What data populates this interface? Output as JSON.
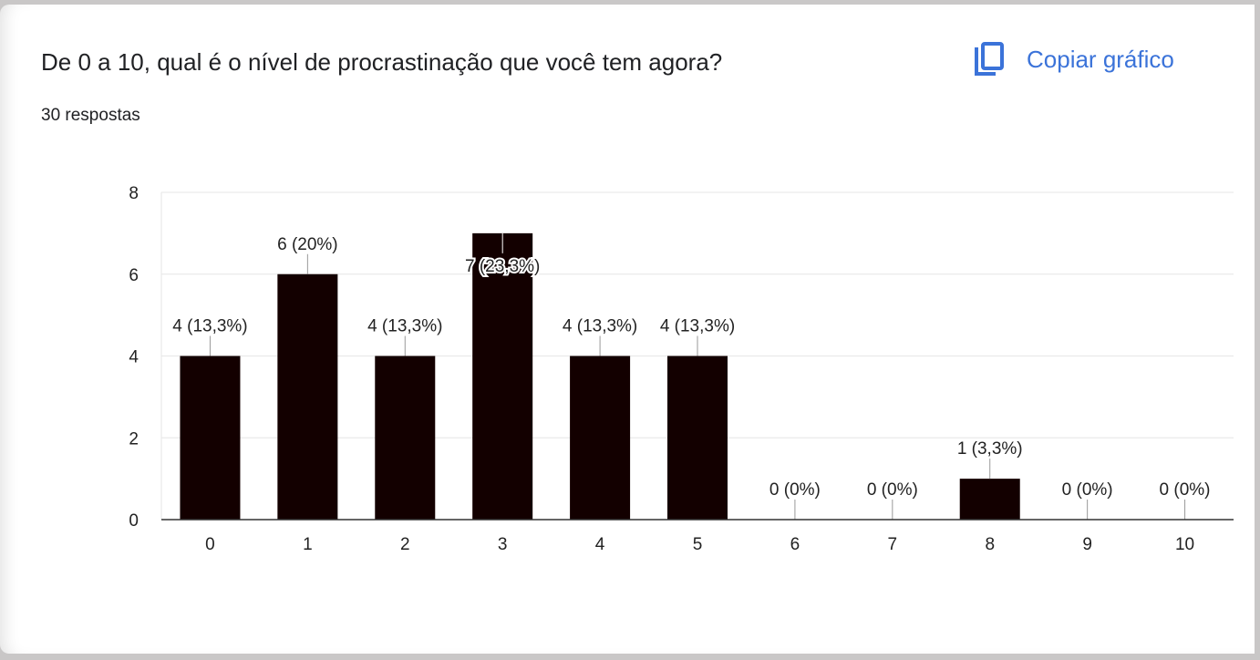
{
  "title": "De 0 a 10, qual é o nível de procrastinação que você tem agora?",
  "responses": "30 respostas",
  "copy_button": {
    "label": "Copiar gráfico",
    "icon": "copy-icon"
  },
  "colors": {
    "bar": "#130000",
    "accent": "#3b73d9",
    "grid": "#e6e6e6"
  },
  "chart_data": {
    "type": "bar",
    "categories": [
      "0",
      "1",
      "2",
      "3",
      "4",
      "5",
      "6",
      "7",
      "8",
      "9",
      "10"
    ],
    "values": [
      4,
      6,
      4,
      7,
      4,
      4,
      0,
      0,
      1,
      0,
      0
    ],
    "data_labels": [
      "4 (13,3%)",
      "6 (20%)",
      "4 (13,3%)",
      "7 (23,3%)",
      "4 (13,3%)",
      "4 (13,3%)",
      "0 (0%)",
      "0 (0%)",
      "1 (3,3%)",
      "0 (0%)",
      "0 (0%)"
    ],
    "y_ticks": [
      0,
      2,
      4,
      6,
      8
    ],
    "ylim": [
      0,
      8
    ],
    "grid": true,
    "title": "De 0 a 10, qual é o nível de procrastinação que você tem agora?",
    "xlabel": "",
    "ylabel": ""
  }
}
